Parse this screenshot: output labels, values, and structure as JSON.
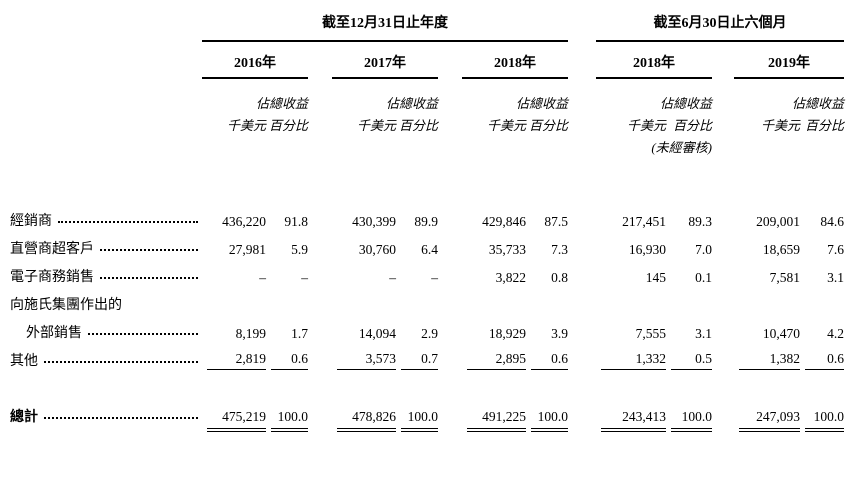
{
  "page": {
    "background": "#ffffff",
    "text_color": "#000000",
    "rule_color": "#000000"
  },
  "table": {
    "header": {
      "group_annual": "截至12月31日止年度",
      "group_interim": "截至6月30日止六個月",
      "years": [
        "2016年",
        "2017年",
        "2018年",
        "2018年",
        "2019年"
      ],
      "unit_label": "千美元",
      "pct_label_line1": "佔總收益",
      "pct_label_line2": "百分比",
      "unaudited_note": "(未經審核)"
    },
    "rows": [
      {
        "label": "經銷商",
        "leader": true,
        "indent": false,
        "rule": "",
        "values": [
          "436,220",
          "91.8",
          "430,399",
          "89.9",
          "429,846",
          "87.5",
          "217,451",
          "89.3",
          "209,001",
          "84.6"
        ]
      },
      {
        "label": "直營商超客戶",
        "leader": true,
        "indent": false,
        "rule": "",
        "values": [
          "27,981",
          "5.9",
          "30,760",
          "6.4",
          "35,733",
          "7.3",
          "16,930",
          "7.0",
          "18,659",
          "7.6"
        ]
      },
      {
        "label": "電子商務銷售",
        "leader": true,
        "indent": false,
        "rule": "",
        "values": [
          "–",
          "–",
          "–",
          "–",
          "3,822",
          "0.8",
          "145",
          "0.1",
          "7,581",
          "3.1"
        ]
      },
      {
        "label": "向施氏集團作出的",
        "leader": false,
        "indent": false,
        "rule": "",
        "values": []
      },
      {
        "label": "外部銷售",
        "leader": true,
        "indent": true,
        "rule": "",
        "values": [
          "8,199",
          "1.7",
          "14,094",
          "2.9",
          "18,929",
          "3.9",
          "7,555",
          "3.1",
          "10,470",
          "4.2"
        ]
      },
      {
        "label": "其他",
        "leader": true,
        "indent": false,
        "rule": "single",
        "values": [
          "2,819",
          "0.6",
          "3,573",
          "0.7",
          "2,895",
          "0.6",
          "1,332",
          "0.5",
          "1,382",
          "0.6"
        ]
      }
    ],
    "total_row": {
      "label": "總計",
      "leader": true,
      "indent": false,
      "bold": true,
      "rule": "double",
      "values": [
        "475,219",
        "100.0",
        "478,826",
        "100.0",
        "491,225",
        "100.0",
        "243,413",
        "100.0",
        "247,093",
        "100.0"
      ]
    }
  }
}
